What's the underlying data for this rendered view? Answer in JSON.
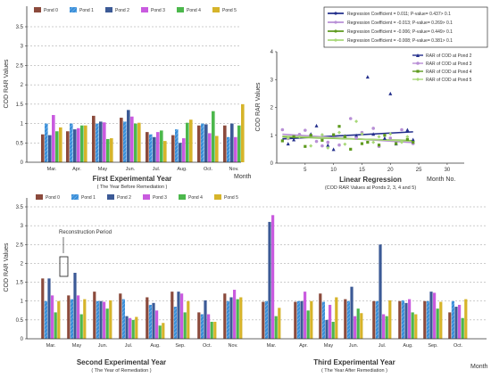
{
  "colors": {
    "Pond 0": "#8B4A3C",
    "Pond 1": "#3A8FD9",
    "Pond 2": "#3C5A96",
    "Pond 3": "#C95BDF",
    "Pond 4": "#4CB84C",
    "Pond 5": "#D6B42A",
    "Pond 1 hatch": "#6E7DD8"
  },
  "legend_labels": [
    "Pond 0",
    "Pond 1",
    "Pond 2",
    "Pond 3",
    "Pond 4",
    "Pond 5"
  ],
  "chart_data": [
    {
      "id": "first-year",
      "type": "bar",
      "ylabel": "COD RAR Values",
      "xlabel_right": "Month",
      "title": "First Experimental Year",
      "subtitle": "( The Year Before Remediation )",
      "ylim": [
        0,
        3.5
      ],
      "yticks": [
        "0",
        "0.5",
        "1",
        "1.5",
        "2",
        "2.5",
        "3",
        "3.5"
      ],
      "grid": "dashed horizontal",
      "legend": "top",
      "categories": [
        "Mar.",
        "Apr.",
        "May",
        "Jun.",
        "Jul.",
        "Aug.",
        "Oct.",
        "Nov."
      ],
      "series": [
        {
          "name": "Pond 0",
          "values": [
            0.72,
            0.8,
            1.2,
            1.15,
            0.78,
            0.7,
            0.95,
            0.95
          ]
        },
        {
          "name": "Pond 1",
          "values": [
            1.0,
            1.0,
            1.0,
            1.05,
            0.72,
            0.85,
            1.0,
            0.65
          ]
        },
        {
          "name": "Pond 2",
          "values": [
            0.7,
            0.85,
            1.05,
            1.35,
            0.65,
            0.5,
            0.98,
            1.0
          ]
        },
        {
          "name": "Pond 3",
          "values": [
            1.22,
            0.88,
            1.03,
            1.18,
            0.78,
            0.62,
            0.75,
            0.65
          ]
        },
        {
          "name": "Pond 4",
          "values": [
            0.8,
            0.95,
            0.6,
            1.0,
            0.82,
            1.02,
            1.32,
            0.95
          ]
        },
        {
          "name": "Pond 5",
          "values": [
            0.9,
            0.95,
            0.62,
            1.02,
            0.55,
            1.1,
            0.68,
            1.5
          ]
        }
      ]
    },
    {
      "id": "linear-regression",
      "type": "scatter",
      "ylabel": "COD RAR Values",
      "xlabel_right": "Month No.",
      "title": "Linear Regression",
      "subtitle": "(COD RAR Values at Ponds 2, 3, 4 and 5)",
      "xlim": [
        0,
        33
      ],
      "ylim": [
        0,
        4
      ],
      "xticks": [
        "5",
        "10",
        "15",
        "20",
        "25",
        "30"
      ],
      "yticks": [
        "0",
        "1",
        "2",
        "3",
        "4"
      ],
      "legend": "bottom-right",
      "regression": [
        {
          "name": "Regression Coefficient = 0.011; P-value= 0.437> 0.1",
          "color": "#232F8C",
          "slope": 0.011,
          "intercept": 0.86
        },
        {
          "name": "Regression Coefficient = -0.013; P-value= 0.269> 0.1",
          "color": "#B88FD6",
          "slope": -0.013,
          "intercept": 1.05
        },
        {
          "name": "Regression Coefficient = -0.006; P-value= 0.449> 0.1",
          "color": "#5E9A1E",
          "slope": -0.006,
          "intercept": 0.95
        },
        {
          "name": "Regression Coefficient = -0.008; P-value= 0.381> 0.1",
          "color": "#A8D878",
          "slope": -0.008,
          "intercept": 0.98
        }
      ],
      "series": [
        {
          "name": "RAR of COD at Pond 2",
          "marker": "triangle",
          "color": "#232F8C",
          "x": [
            2,
            3,
            6,
            7,
            9,
            10,
            12,
            14,
            16,
            17,
            19,
            20,
            21,
            23,
            24
          ],
          "y": [
            0.7,
            0.85,
            1.05,
            1.35,
            0.65,
            0.5,
            0.98,
            1.0,
            3.1,
            1.05,
            0.9,
            2.5,
            0.7,
            1.2,
            0.85
          ]
        },
        {
          "name": "RAR of COD at Pond 3",
          "marker": "circle",
          "color": "#B88FD6",
          "x": [
            1,
            2,
            4,
            5,
            7,
            8,
            9,
            11,
            13,
            14,
            15,
            17,
            18,
            20,
            22,
            24
          ],
          "y": [
            1.2,
            0.88,
            1.03,
            1.18,
            0.78,
            0.62,
            0.75,
            0.65,
            1.6,
            0.9,
            1.1,
            1.25,
            0.6,
            0.9,
            1.2,
            0.7
          ]
        },
        {
          "name": "RAR of COD at Pond 4",
          "marker": "square",
          "color": "#5E9A1E",
          "x": [
            1,
            3,
            5,
            6,
            8,
            10,
            11,
            12,
            13,
            15,
            16,
            18,
            19,
            21,
            23,
            24
          ],
          "y": [
            0.8,
            0.95,
            0.6,
            1.0,
            0.82,
            1.02,
            1.32,
            0.95,
            0.5,
            0.7,
            0.75,
            0.65,
            1.0,
            0.7,
            0.85,
            0.75
          ]
        },
        {
          "name": "RAR of COD at Pond 5",
          "marker": "diamond",
          "color": "#A8D878",
          "x": [
            2,
            4,
            6,
            8,
            9,
            11,
            12,
            14,
            15,
            17,
            18,
            20,
            22,
            23
          ],
          "y": [
            0.9,
            0.95,
            0.62,
            1.02,
            0.55,
            1.1,
            0.68,
            1.5,
            1.05,
            0.75,
            0.95,
            1.05,
            0.75,
            0.95
          ]
        }
      ]
    },
    {
      "id": "second-third-year",
      "type": "bar",
      "ylabel": "COD RAR Values",
      "xlabel_right": "Month",
      "ylim": [
        0,
        3.5
      ],
      "yticks": [
        "0",
        "0.5",
        "1",
        "1.5",
        "2",
        "2.5",
        "3",
        "3.5"
      ],
      "grid": "dashed horizontal",
      "legend": "top",
      "annotation": "Reconstruction Period",
      "groups": [
        {
          "title": "Second Experimental Year",
          "subtitle": "( The Year of Remediation )"
        },
        {
          "title": "Third Experimental Year",
          "subtitle": "( The Year After Remediation )"
        }
      ],
      "categories": [
        "Mar.",
        "May",
        "Jun.",
        "Jul.",
        "Aug.",
        "Sep.",
        "Oct.",
        "Nov.",
        "Mar.",
        "Apr.",
        "May",
        "Jun.",
        "Jul.",
        "Aug.",
        "Sep.",
        "Oct."
      ],
      "series": [
        {
          "name": "Pond 0",
          "values": [
            1.6,
            1.15,
            1.25,
            1.2,
            1.1,
            1.25,
            0.7,
            1.2,
            0.98,
            0.98,
            1.2,
            1.05,
            1.0,
            1.0,
            1.0,
            0.7
          ]
        },
        {
          "name": "Pond 1",
          "values": [
            1.0,
            1.05,
            1.0,
            1.05,
            0.9,
            0.85,
            0.65,
            1.0,
            1.0,
            1.0,
            0.98,
            1.0,
            1.0,
            1.02,
            1.0,
            1.0
          ]
        },
        {
          "name": "Pond 2",
          "values": [
            1.6,
            1.75,
            1.0,
            0.6,
            0.95,
            1.25,
            1.02,
            1.1,
            3.1,
            1.0,
            0.5,
            1.38,
            2.5,
            0.95,
            1.25,
            0.85
          ]
        },
        {
          "name": "Pond 3",
          "values": [
            1.15,
            1.15,
            0.98,
            0.55,
            0.75,
            1.2,
            0.65,
            1.3,
            3.28,
            1.25,
            0.9,
            0.6,
            0.65,
            1.05,
            1.22,
            0.9
          ]
        },
        {
          "name": "Pond 4",
          "values": [
            0.7,
            0.65,
            0.8,
            0.5,
            0.35,
            0.7,
            0.45,
            1.05,
            0.6,
            0.75,
            0.45,
            0.8,
            0.6,
            0.7,
            0.8,
            0.55
          ]
        },
        {
          "name": "Pond 5",
          "values": [
            1.0,
            1.05,
            1.02,
            0.58,
            0.42,
            1.0,
            0.45,
            1.1,
            0.82,
            1.0,
            1.1,
            0.68,
            1.02,
            0.65,
            0.98,
            1.05
          ]
        }
      ]
    }
  ]
}
